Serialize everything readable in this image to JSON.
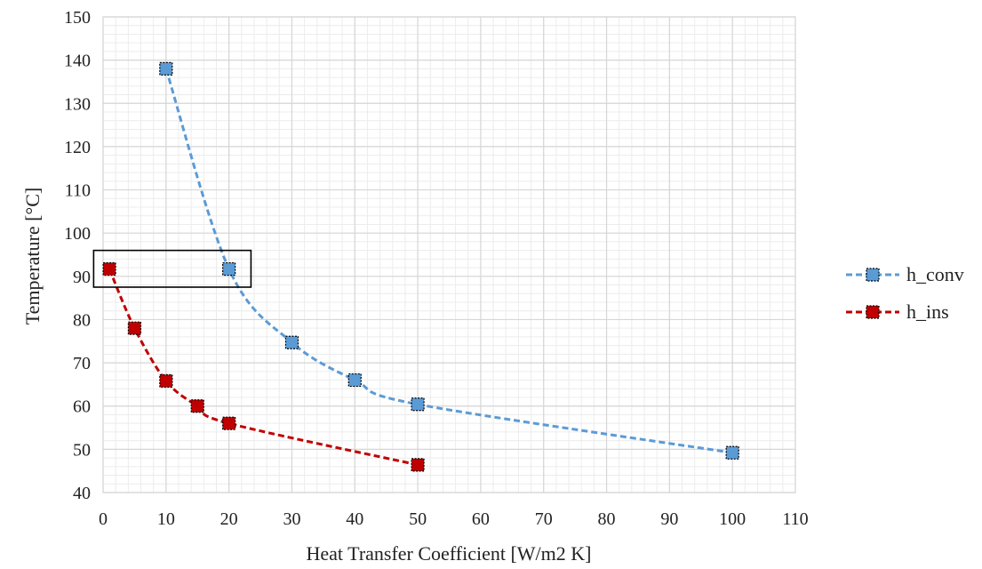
{
  "chart_data": {
    "type": "scatter",
    "xlabel": "Heat Transfer Coefficient [W/m2 K]",
    "ylabel": "Temperature [°C]",
    "xlim": [
      0,
      110
    ],
    "ylim": [
      40,
      150
    ],
    "x_ticks": [
      0,
      10,
      20,
      30,
      40,
      50,
      60,
      70,
      80,
      90,
      100,
      110
    ],
    "y_ticks": [
      40,
      50,
      60,
      70,
      80,
      90,
      100,
      110,
      120,
      130,
      140,
      150
    ],
    "grid": true,
    "minor_grid": true,
    "legend_position": "right",
    "series": [
      {
        "name": "h_conv",
        "color": "#5b9bd5",
        "x": [
          10,
          20,
          30,
          40,
          50,
          100
        ],
        "y": [
          138,
          91.7,
          74.7,
          66,
          60.4,
          49.2
        ]
      },
      {
        "name": "h_ins",
        "color": "#c00000",
        "x": [
          1,
          5,
          10,
          15,
          20,
          50
        ],
        "y": [
          91.7,
          78,
          65.8,
          60,
          56,
          46.4
        ]
      }
    ],
    "annotations": [
      {
        "type": "box",
        "x_range": [
          -1.5,
          23.5
        ],
        "y_range": [
          87.5,
          96
        ]
      }
    ]
  }
}
